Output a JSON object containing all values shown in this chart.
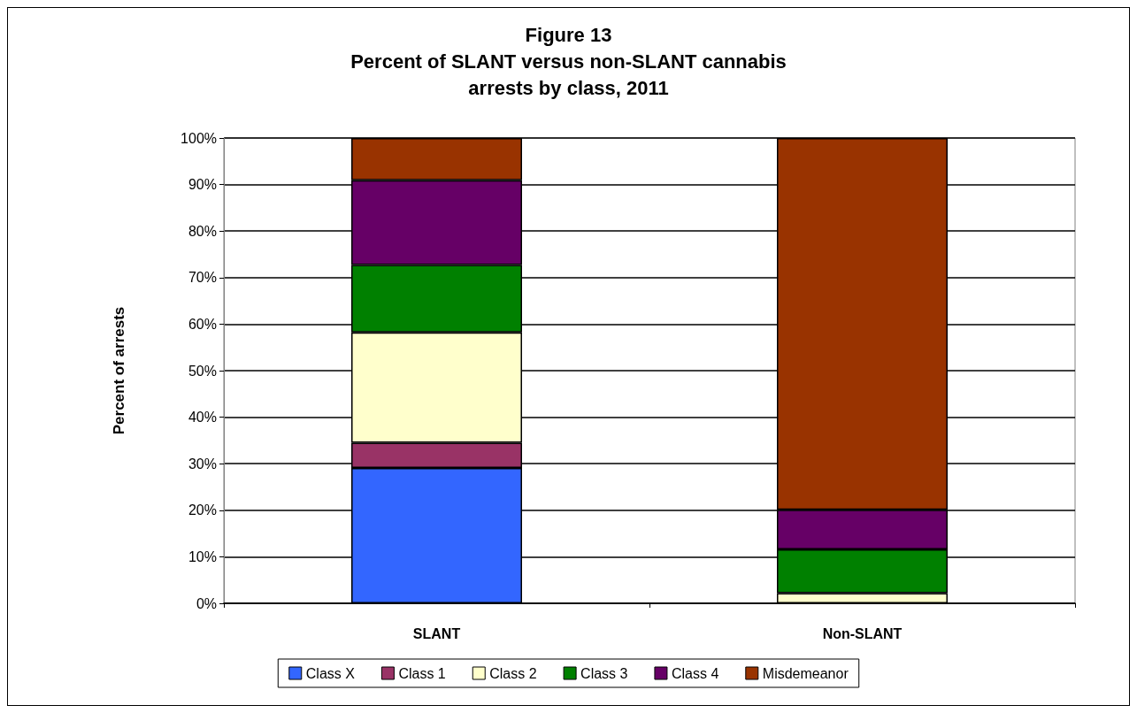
{
  "chart_data": {
    "type": "bar",
    "title": "Figure 13\nPercent of SLANT versus non-SLANT cannabis\narrests by class, 2011",
    "ylabel": "Percent of arrests",
    "categories": [
      "SLANT",
      "Non-SLANT"
    ],
    "stacked": true,
    "series": [
      {
        "name": "Class X",
        "color": "#3366ff",
        "values": [
          29.1,
          0
        ]
      },
      {
        "name": "Class 1",
        "color": "#993366",
        "values": [
          5.4,
          0
        ]
      },
      {
        "name": "Class 2",
        "color": "#ffffcc",
        "values": [
          23.7,
          2.2
        ]
      },
      {
        "name": "Class 3",
        "color": "#008000",
        "values": [
          14.5,
          9.4
        ]
      },
      {
        "name": "Class 4",
        "color": "#660066",
        "values": [
          18.2,
          8.5
        ]
      },
      {
        "name": "Misdemeanor",
        "color": "#993300",
        "values": [
          9.1,
          79.9
        ]
      }
    ],
    "ylim": [
      0,
      100
    ],
    "yticks": [
      {
        "value": 0,
        "label": "0%"
      },
      {
        "value": 10,
        "label": "10%"
      },
      {
        "value": 20,
        "label": "20%"
      },
      {
        "value": 30,
        "label": "30%"
      },
      {
        "value": 40,
        "label": "40%"
      },
      {
        "value": 50,
        "label": "50%"
      },
      {
        "value": 60,
        "label": "60%"
      },
      {
        "value": 70,
        "label": "70%"
      },
      {
        "value": 80,
        "label": "80%"
      },
      {
        "value": 90,
        "label": "90%"
      },
      {
        "value": 100,
        "label": "100%"
      }
    ],
    "grid": "y",
    "legend": "bottom"
  }
}
